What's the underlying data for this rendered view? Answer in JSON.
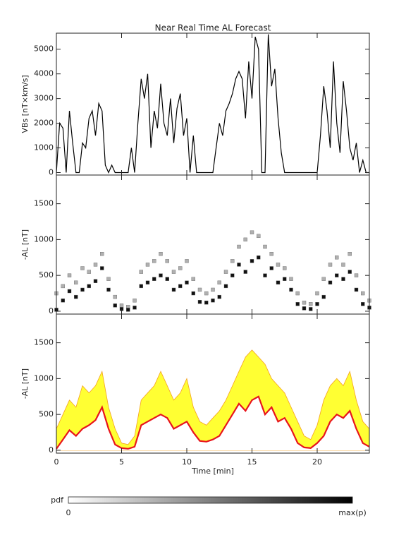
{
  "chart_data": [
    {
      "type": "line",
      "title": "Near Real Time AL Forecast",
      "y_label": "VBs [nT×km/s]",
      "x": [
        0,
        0.25,
        0.5,
        0.75,
        1,
        1.25,
        1.5,
        1.75,
        2,
        2.25,
        2.5,
        2.75,
        3,
        3.25,
        3.5,
        3.75,
        4,
        4.25,
        4.5,
        4.75,
        5,
        5.25,
        5.5,
        5.75,
        6,
        6.25,
        6.5,
        6.75,
        7,
        7.25,
        7.5,
        7.75,
        8,
        8.25,
        8.5,
        8.75,
        9,
        9.25,
        9.5,
        9.75,
        10,
        10.25,
        10.5,
        10.75,
        11,
        11.25,
        11.5,
        11.75,
        12,
        12.25,
        12.5,
        12.75,
        13,
        13.25,
        13.5,
        13.75,
        14,
        14.25,
        14.5,
        14.75,
        15,
        15.25,
        15.5,
        15.75,
        16,
        16.25,
        16.5,
        16.75,
        17,
        17.25,
        17.5,
        17.75,
        18,
        18.25,
        18.5,
        18.75,
        19,
        19.25,
        19.5,
        19.75,
        20,
        20.25,
        20.5,
        20.75,
        21,
        21.25,
        21.5,
        21.75,
        22,
        22.25,
        22.5,
        22.75,
        23,
        23.25,
        23.5,
        23.75,
        24
      ],
      "series": [
        {
          "color": "#000000",
          "values": [
            0,
            2000,
            1800,
            0,
            2500,
            1200,
            0,
            0,
            1200,
            1000,
            2200,
            2500,
            1500,
            2800,
            2500,
            300,
            0,
            300,
            0,
            0,
            0,
            0,
            0,
            1000,
            0,
            2000,
            3800,
            3000,
            4000,
            1000,
            2500,
            1800,
            3600,
            2000,
            1500,
            3000,
            1200,
            2600,
            3200,
            1500,
            2200,
            0,
            1500,
            0,
            0,
            0,
            0,
            0,
            0,
            1000,
            2000,
            1500,
            2500,
            2800,
            3200,
            3800,
            4100,
            3800,
            2200,
            4500,
            3000,
            5500,
            5000,
            0,
            0,
            5600,
            3500,
            4200,
            2200,
            800,
            0,
            0,
            0,
            0,
            0,
            0,
            0,
            0,
            0,
            0,
            0,
            1500,
            3500,
            2500,
            1000,
            4500,
            2000,
            800,
            3700,
            2500,
            1000,
            500,
            1200,
            0,
            500,
            0,
            0
          ]
        }
      ],
      "xlim": [
        0,
        24
      ],
      "xticks": [
        0,
        5,
        10,
        15,
        20
      ],
      "ylim": [
        -100,
        5650
      ],
      "yticks": [
        0,
        1000,
        2000,
        3000,
        4000,
        5000
      ]
    },
    {
      "type": "scatter",
      "y_label": "-AL [nT]",
      "x": [
        0,
        0.5,
        1,
        1.5,
        2,
        2.5,
        3,
        3.5,
        4,
        4.5,
        5,
        5.5,
        6,
        6.5,
        7,
        7.5,
        8,
        8.5,
        9,
        9.5,
        10,
        10.5,
        11,
        11.5,
        12,
        12.5,
        13,
        13.5,
        14,
        14.5,
        15,
        15.5,
        16,
        16.5,
        17,
        17.5,
        18,
        18.5,
        19,
        19.5,
        20,
        20.5,
        21,
        21.5,
        22,
        22.5,
        23,
        23.5,
        24
      ],
      "series": [
        {
          "color": "#111111",
          "values": [
            20,
            150,
            280,
            200,
            300,
            350,
            420,
            600,
            300,
            80,
            30,
            20,
            50,
            350,
            400,
            450,
            500,
            450,
            300,
            350,
            400,
            250,
            130,
            120,
            150,
            200,
            350,
            500,
            650,
            550,
            700,
            750,
            500,
            600,
            400,
            450,
            300,
            100,
            40,
            30,
            100,
            200,
            400,
            500,
            450,
            550,
            300,
            100,
            50
          ]
        },
        {
          "color": "#b0b0b0",
          "values": [
            250,
            350,
            500,
            400,
            600,
            550,
            650,
            800,
            450,
            200,
            80,
            60,
            150,
            550,
            650,
            700,
            800,
            700,
            550,
            600,
            700,
            450,
            300,
            250,
            300,
            400,
            550,
            700,
            900,
            1000,
            1100,
            1050,
            900,
            800,
            650,
            600,
            450,
            250,
            120,
            100,
            250,
            450,
            650,
            750,
            650,
            800,
            500,
            250,
            150
          ]
        }
      ],
      "xlim": [
        0,
        24
      ],
      "xticks": [
        0,
        5,
        10,
        15,
        20
      ],
      "ylim": [
        -40,
        1900
      ],
      "yticks": [
        0,
        500,
        1000,
        1500
      ]
    },
    {
      "type": "band",
      "y_label": "-AL [nT]",
      "x_label": "Time [min]",
      "x": [
        0,
        0.5,
        1,
        1.5,
        2,
        2.5,
        3,
        3.5,
        4,
        4.5,
        5,
        5.5,
        6,
        6.5,
        7,
        7.5,
        8,
        8.5,
        9,
        9.5,
        10,
        10.5,
        11,
        11.5,
        12,
        12.5,
        13,
        13.5,
        14,
        14.5,
        15,
        15.5,
        16,
        16.5,
        17,
        17.5,
        18,
        18.5,
        19,
        19.5,
        20,
        20.5,
        21,
        21.5,
        22,
        22.5,
        23,
        23.5,
        24
      ],
      "series": [
        {
          "color": "#e8141c",
          "values": [
            20,
            150,
            280,
            200,
            300,
            350,
            420,
            600,
            300,
            80,
            30,
            20,
            50,
            350,
            400,
            450,
            500,
            450,
            300,
            350,
            400,
            250,
            130,
            120,
            150,
            200,
            350,
            500,
            650,
            550,
            700,
            750,
            500,
            600,
            400,
            450,
            300,
            100,
            40,
            30,
            100,
            200,
            400,
            500,
            450,
            550,
            300,
            100,
            50
          ]
        },
        {
          "color": "#ffff33",
          "values": [
            300,
            500,
            700,
            600,
            900,
            800,
            900,
            1100,
            600,
            300,
            100,
            80,
            200,
            700,
            800,
            900,
            1100,
            900,
            700,
            800,
            1000,
            600,
            400,
            350,
            450,
            550,
            700,
            900,
            1100,
            1300,
            1400,
            1300,
            1200,
            1000,
            900,
            800,
            600,
            400,
            200,
            150,
            350,
            700,
            900,
            1000,
            900,
            1100,
            700,
            400,
            300
          ]
        }
      ],
      "xlim": [
        0,
        24
      ],
      "xticks": [
        0,
        5,
        10,
        15,
        20
      ],
      "ylim": [
        -40,
        1900
      ],
      "yticks": [
        0,
        500,
        1000,
        1500
      ]
    }
  ],
  "colorbar": {
    "label": "pdf",
    "min_label": "0",
    "max_label": "max(p)"
  }
}
